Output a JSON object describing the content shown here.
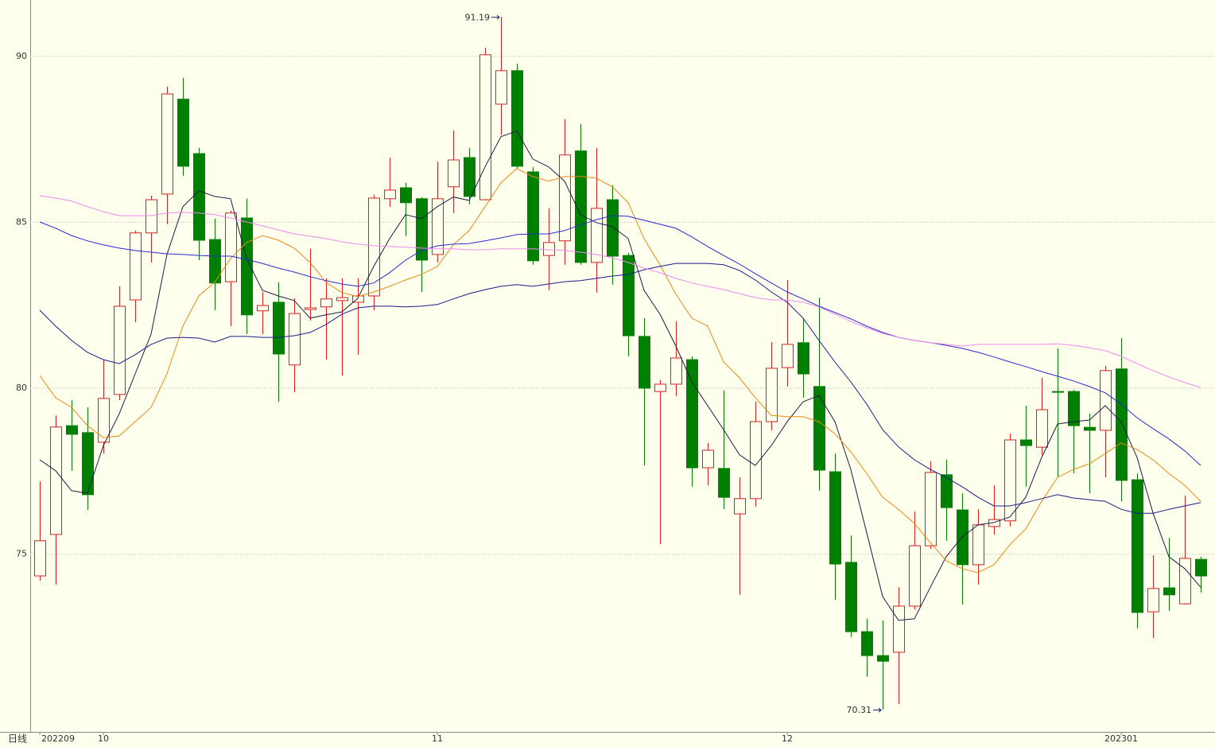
{
  "chart_data": {
    "type": "candlestick",
    "period": "日线",
    "categories": [
      "202209",
      null,
      null,
      null,
      "10",
      null,
      null,
      null,
      null,
      null,
      null,
      null,
      null,
      null,
      null,
      null,
      null,
      null,
      null,
      null,
      null,
      null,
      null,
      null,
      null,
      "11",
      null,
      null,
      null,
      null,
      null,
      null,
      null,
      null,
      null,
      null,
      null,
      null,
      null,
      null,
      null,
      null,
      null,
      null,
      null,
      null,
      null,
      "12",
      null,
      null,
      null,
      null,
      null,
      null,
      null,
      null,
      null,
      null,
      null,
      null,
      null,
      null,
      null,
      null,
      null,
      null,
      null,
      null,
      "202301",
      null,
      null,
      null,
      null,
      null
    ],
    "open": [
      74.34,
      75.59,
      78.87,
      78.66,
      78.37,
      79.81,
      82.66,
      84.68,
      85.85,
      88.71,
      87.07,
      84.48,
      83.21,
      85.13,
      82.33,
      82.59,
      80.7,
      82.37,
      82.45,
      82.64,
      82.59,
      82.78,
      85.71,
      86.04,
      85.71,
      84.03,
      86.07,
      86.95,
      85.68,
      88.56,
      89.57,
      86.52,
      84.0,
      84.44,
      87.15,
      83.79,
      85.68,
      84.0,
      81.56,
      79.9,
      80.12,
      80.86,
      77.6,
      77.58,
      76.21,
      76.67,
      78.99,
      80.62,
      81.37,
      80.05,
      77.48,
      74.75,
      72.66,
      71.94,
      72.04,
      73.43,
      75.25,
      77.39,
      76.33,
      74.68,
      75.83,
      76.0,
      78.44,
      78.22,
      79.9,
      79.9,
      78.82,
      78.73,
      80.58,
      77.24,
      73.26,
      73.98,
      73.5,
      74.84
    ],
    "high": [
      77.19,
      79.18,
      79.64,
      79.42,
      80.86,
      83.07,
      84.75,
      85.8,
      89.09,
      89.35,
      87.24,
      85.11,
      85.35,
      85.71,
      82.9,
      83.19,
      82.71,
      84.2,
      83.31,
      83.31,
      83.31,
      85.83,
      86.95,
      86.19,
      85.76,
      86.83,
      87.77,
      87.24,
      90.26,
      91.19,
      89.78,
      86.67,
      85.42,
      88.11,
      87.96,
      87.24,
      86.12,
      84.08,
      82.11,
      80.24,
      82.01,
      80.96,
      78.35,
      79.93,
      77.31,
      79.59,
      81.39,
      83.26,
      82.11,
      82.73,
      78.03,
      75.56,
      73.05,
      73.0,
      74.0,
      76.28,
      77.79,
      77.84,
      76.83,
      76.35,
      77.07,
      78.63,
      79.47,
      80.31,
      81.2,
      79.95,
      79.23,
      80.67,
      81.51,
      77.43,
      74.96,
      75.49,
      76.76,
      74.92
    ],
    "low": [
      74.2,
      74.08,
      77.51,
      76.33,
      78.03,
      79.64,
      81.99,
      83.79,
      84.94,
      86.4,
      83.86,
      82.35,
      81.87,
      81.63,
      81.63,
      79.59,
      79.88,
      82.04,
      80.86,
      80.38,
      81.01,
      82.35,
      85.47,
      84.58,
      82.9,
      83.79,
      85.28,
      85.54,
      85.66,
      87.63,
      86.62,
      83.72,
      82.95,
      83.72,
      83.72,
      82.88,
      83.12,
      80.96,
      77.67,
      75.3,
      79.76,
      77.03,
      77.07,
      76.35,
      73.77,
      76.43,
      78.73,
      80.05,
      79.71,
      76.91,
      73.62,
      72.5,
      71.3,
      70.31,
      70.48,
      73.33,
      75.16,
      75.4,
      73.48,
      74.08,
      75.59,
      75.83,
      77.03,
      77.99,
      77.31,
      77.43,
      76.83,
      77.31,
      76.59,
      72.76,
      72.47,
      73.29,
      73.48,
      73.84
    ],
    "close": [
      75.4,
      78.83,
      78.61,
      76.79,
      79.69,
      82.47,
      84.68,
      85.68,
      88.87,
      86.69,
      84.46,
      83.17,
      85.28,
      82.21,
      82.49,
      81.03,
      82.25,
      82.42,
      82.69,
      82.73,
      82.78,
      85.73,
      85.97,
      85.59,
      83.86,
      85.71,
      86.88,
      85.78,
      90.05,
      89.57,
      86.69,
      83.84,
      84.39,
      87.03,
      83.79,
      85.42,
      83.98,
      81.58,
      80.0,
      80.12,
      80.91,
      77.6,
      78.13,
      76.71,
      76.67,
      78.99,
      80.6,
      81.32,
      80.43,
      77.53,
      74.7,
      72.66,
      71.94,
      71.77,
      73.43,
      75.25,
      77.46,
      76.4,
      74.68,
      75.88,
      76.04,
      78.44,
      78.27,
      79.35,
      79.88,
      78.87,
      78.73,
      80.53,
      77.22,
      73.24,
      73.96,
      73.77,
      74.87,
      74.34
    ],
    "up_color": "#d42020",
    "down_color": "#008000",
    "series": [
      {
        "color": "#1c1c44",
        "values": [
          77.84,
          77.51,
          76.91,
          76.83,
          78.27,
          79.23,
          80.43,
          81.63,
          84.03,
          85.47,
          85.95,
          85.78,
          85.71,
          83.91,
          82.95,
          82.78,
          82.64,
          82.11,
          82.21,
          82.3,
          82.71,
          83.67,
          84.51,
          85.23,
          85.11,
          85.47,
          85.76,
          85.66,
          86.67,
          87.58,
          87.75,
          86.91,
          86.67,
          86.24,
          85.23,
          84.99,
          84.87,
          84.51,
          82.95,
          82.23,
          81.27,
          80.19,
          79.47,
          78.75,
          77.99,
          77.67,
          78.27,
          78.99,
          79.59,
          79.78,
          78.99,
          77.55,
          75.64,
          73.72,
          73.0,
          73.05,
          74.0,
          74.92,
          75.52,
          75.88,
          75.95,
          76.12,
          76.71,
          77.91,
          78.92,
          78.99,
          79.04,
          79.47,
          78.99,
          77.91,
          76.24,
          74.92,
          74.56,
          74.0
        ]
      },
      {
        "color": "#e88a10",
        "values": [
          80.38,
          79.71,
          79.42,
          78.87,
          78.51,
          78.56,
          78.99,
          79.42,
          80.43,
          81.87,
          82.78,
          83.19,
          83.91,
          84.39,
          84.6,
          84.46,
          84.22,
          83.79,
          83.19,
          82.88,
          82.76,
          82.9,
          83.07,
          83.26,
          83.43,
          83.67,
          84.32,
          84.75,
          85.47,
          86.19,
          86.62,
          86.38,
          86.24,
          86.38,
          86.38,
          86.33,
          86.07,
          85.59,
          84.51,
          83.72,
          82.83,
          82.11,
          81.87,
          80.79,
          80.31,
          79.71,
          79.18,
          79.14,
          79.14,
          78.99,
          78.63,
          78.08,
          77.43,
          76.71,
          76.35,
          75.92,
          75.35,
          74.8,
          74.56,
          74.44,
          74.68,
          75.28,
          75.76,
          76.59,
          77.31,
          77.55,
          77.72,
          78.03,
          78.35,
          78.15,
          77.84,
          77.43,
          77.07,
          76.59
        ]
      },
      {
        "color": "#1a1a8c",
        "values": [
          82.35,
          81.87,
          81.44,
          81.08,
          80.86,
          80.74,
          81.01,
          81.32,
          81.51,
          81.53,
          81.51,
          81.39,
          81.56,
          81.56,
          81.53,
          81.53,
          81.58,
          81.68,
          81.92,
          82.23,
          82.42,
          82.47,
          82.47,
          82.45,
          82.47,
          82.52,
          82.69,
          82.85,
          82.97,
          83.07,
          83.12,
          83.07,
          83.14,
          83.21,
          83.24,
          83.31,
          83.38,
          83.43,
          83.57,
          83.67,
          83.76,
          83.76,
          83.76,
          83.72,
          83.55,
          83.26,
          82.9,
          82.59,
          82.11,
          81.44,
          80.79,
          80.19,
          79.52,
          78.75,
          78.23,
          77.84,
          77.55,
          77.31,
          77.03,
          76.71,
          76.45,
          76.45,
          76.55,
          76.67,
          76.79,
          76.69,
          76.64,
          76.59,
          76.35,
          76.23,
          76.23,
          76.35,
          76.45,
          76.55
        ]
      },
      {
        "color": "#2a2ad0",
        "values": [
          85.01,
          84.82,
          84.6,
          84.44,
          84.32,
          84.22,
          84.15,
          84.1,
          84.05,
          84.03,
          84.0,
          83.98,
          83.98,
          83.88,
          83.76,
          83.62,
          83.5,
          83.36,
          83.24,
          83.14,
          83.07,
          83.17,
          83.48,
          83.86,
          84.15,
          84.29,
          84.34,
          84.36,
          84.44,
          84.53,
          84.63,
          84.65,
          84.65,
          84.75,
          84.92,
          85.08,
          85.2,
          85.18,
          85.06,
          84.94,
          84.82,
          84.56,
          84.27,
          84.0,
          83.74,
          83.45,
          83.17,
          82.9,
          82.69,
          82.47,
          82.28,
          82.09,
          81.87,
          81.68,
          81.53,
          81.44,
          81.37,
          81.29,
          81.2,
          81.08,
          80.94,
          80.79,
          80.65,
          80.5,
          80.36,
          80.22,
          80.05,
          79.86,
          79.52,
          79.11,
          78.78,
          78.47,
          78.11,
          77.67
        ]
      },
      {
        "color": "#ee88ee",
        "values": [
          85.8,
          85.73,
          85.64,
          85.47,
          85.32,
          85.2,
          85.2,
          85.2,
          85.28,
          85.3,
          85.28,
          85.23,
          85.13,
          85.01,
          84.89,
          84.77,
          84.65,
          84.58,
          84.51,
          84.41,
          84.34,
          84.29,
          84.27,
          84.25,
          84.22,
          84.2,
          84.2,
          84.17,
          84.17,
          84.2,
          84.2,
          84.2,
          84.17,
          84.15,
          84.1,
          84.03,
          83.93,
          83.79,
          83.62,
          83.48,
          83.31,
          83.17,
          83.07,
          82.97,
          82.85,
          82.73,
          82.66,
          82.66,
          82.59,
          82.45,
          82.23,
          82.01,
          81.82,
          81.65,
          81.53,
          81.44,
          81.37,
          81.32,
          81.27,
          81.32,
          81.32,
          81.32,
          81.32,
          81.32,
          81.34,
          81.29,
          81.22,
          81.13,
          80.96,
          80.74,
          80.53,
          80.34,
          80.17,
          80.02
        ]
      }
    ],
    "ylim": [
      69.64,
      91.7
    ],
    "yticks": [
      75,
      80,
      85,
      90
    ],
    "grid": true,
    "high_label": "91.19",
    "low_label": "70.31"
  }
}
